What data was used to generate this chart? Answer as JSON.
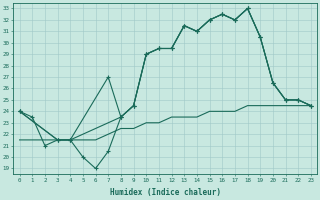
{
  "title": "",
  "xlabel": "Humidex (Indice chaleur)",
  "bg_color": "#c8e8e0",
  "grid_color": "#a0c8c8",
  "line_color": "#1a6b5a",
  "xlim": [
    -0.5,
    23.5
  ],
  "ylim": [
    18.5,
    33.5
  ],
  "yticks": [
    19,
    20,
    21,
    22,
    23,
    24,
    25,
    26,
    27,
    28,
    29,
    30,
    31,
    32,
    33
  ],
  "xticks": [
    0,
    1,
    2,
    3,
    4,
    5,
    6,
    7,
    8,
    9,
    10,
    11,
    12,
    13,
    14,
    15,
    16,
    17,
    18,
    19,
    20,
    21,
    22,
    23
  ],
  "line1_x": [
    0,
    1,
    2,
    3,
    4,
    5,
    6,
    7,
    8,
    9,
    10,
    11,
    12,
    13,
    14,
    15,
    16,
    17,
    18,
    19,
    20,
    21,
    22,
    23
  ],
  "line1_y": [
    24,
    23.5,
    21,
    21.5,
    21.5,
    20,
    19,
    20.5,
    23.5,
    24.5,
    29,
    29.5,
    29.5,
    31.5,
    31,
    32,
    32.5,
    32,
    33,
    30.5,
    26.5,
    25,
    25,
    24.5
  ],
  "line2_x": [
    0,
    3,
    4,
    7,
    8,
    9,
    10,
    11,
    12,
    13,
    14,
    15,
    16,
    17,
    18,
    19,
    20,
    21,
    22,
    23
  ],
  "line2_y": [
    24,
    21.5,
    21.5,
    27,
    23.5,
    24.5,
    29,
    29.5,
    29.5,
    31.5,
    31,
    32,
    32.5,
    32,
    33,
    30.5,
    26.5,
    25,
    25,
    24.5
  ],
  "line3_x": [
    0,
    3,
    4,
    8,
    9,
    10,
    11,
    12,
    13,
    14,
    15,
    16,
    17,
    18,
    19,
    20,
    21,
    22,
    23
  ],
  "line3_y": [
    24,
    21.5,
    21.5,
    23.5,
    24.5,
    29,
    29.5,
    29.5,
    31.5,
    31,
    32,
    32.5,
    32,
    33,
    30.5,
    26.5,
    25,
    25,
    24.5
  ],
  "line4_x": [
    0,
    1,
    2,
    3,
    4,
    5,
    6,
    7,
    8,
    9,
    10,
    11,
    12,
    13,
    14,
    15,
    16,
    17,
    18,
    19,
    20,
    21,
    22,
    23
  ],
  "line4_y": [
    21.5,
    21.5,
    21.5,
    21.5,
    21.5,
    21.5,
    21.5,
    22,
    22.5,
    22.5,
    23,
    23,
    23.5,
    23.5,
    23.5,
    24,
    24,
    24,
    24.5,
    24.5,
    24.5,
    24.5,
    24.5,
    24.5
  ]
}
